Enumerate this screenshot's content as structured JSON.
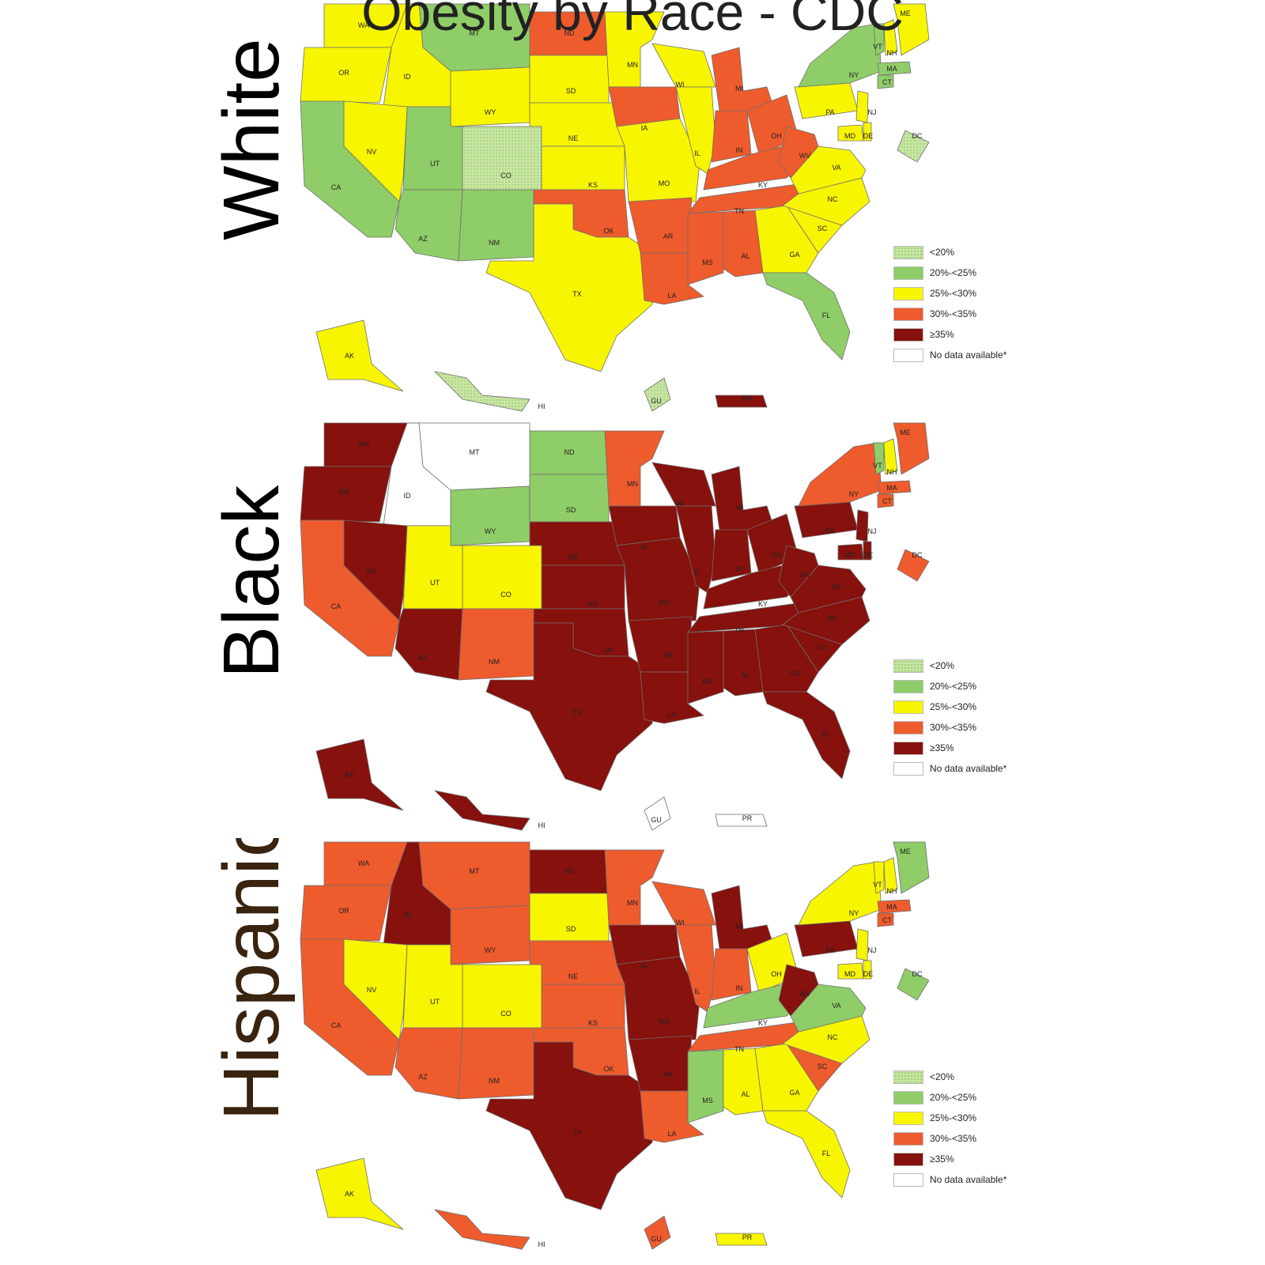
{
  "title": "Obesity by Race - CDC",
  "colors": {
    "lt20": "#c8e6a3",
    "20_25": "#8fcd68",
    "25_30": "#f8f500",
    "30_35": "#ee5b2d",
    "ge35": "#86110d",
    "nodata": "#ffffff"
  },
  "legend": [
    {
      "key": "lt20",
      "label": "<20%"
    },
    {
      "key": "20_25",
      "label": "20%-<25%"
    },
    {
      "key": "25_30",
      "label": "25%-<30%"
    },
    {
      "key": "30_35",
      "label": "30%-<35%"
    },
    {
      "key": "ge35",
      "label": "≥35%"
    },
    {
      "key": "nodata",
      "label": "No data available*"
    }
  ],
  "panels": [
    {
      "label": "White",
      "label_color": "#000000",
      "states": {
        "WA": "25_30",
        "OR": "25_30",
        "CA": "20_25",
        "ID": "25_30",
        "NV": "25_30",
        "MT": "20_25",
        "WY": "25_30",
        "UT": "20_25",
        "CO": "lt20",
        "AZ": "20_25",
        "NM": "20_25",
        "ND": "30_35",
        "SD": "25_30",
        "NE": "25_30",
        "KS": "25_30",
        "OK": "30_35",
        "TX": "25_30",
        "MN": "25_30",
        "IA": "30_35",
        "MO": "25_30",
        "AR": "30_35",
        "LA": "30_35",
        "WI": "25_30",
        "IL": "25_30",
        "MI": "30_35",
        "IN": "30_35",
        "OH": "30_35",
        "KY": "30_35",
        "TN": "30_35",
        "MS": "30_35",
        "AL": "30_35",
        "GA": "25_30",
        "FL": "20_25",
        "SC": "25_30",
        "NC": "25_30",
        "VA": "25_30",
        "WV": "30_35",
        "PA": "25_30",
        "NY": "20_25",
        "VT": "20_25",
        "NH": "25_30",
        "ME": "25_30",
        "MA": "20_25",
        "CT": "20_25",
        "NJ": "25_30",
        "MD": "25_30",
        "DE": "25_30",
        "DC": "lt20",
        "AK": "25_30",
        "HI": "lt20",
        "GU": "lt20",
        "PR": "ge35"
      }
    },
    {
      "label": "Black",
      "label_color": "#000000",
      "states": {
        "WA": "ge35",
        "OR": "ge35",
        "CA": "30_35",
        "ID": "nodata",
        "NV": "ge35",
        "MT": "nodata",
        "WY": "20_25",
        "UT": "25_30",
        "CO": "25_30",
        "AZ": "ge35",
        "NM": "30_35",
        "ND": "20_25",
        "SD": "20_25",
        "NE": "ge35",
        "KS": "ge35",
        "OK": "ge35",
        "TX": "ge35",
        "MN": "30_35",
        "IA": "ge35",
        "MO": "ge35",
        "AR": "ge35",
        "LA": "ge35",
        "WI": "ge35",
        "IL": "ge35",
        "MI": "ge35",
        "IN": "ge35",
        "OH": "ge35",
        "KY": "ge35",
        "TN": "ge35",
        "MS": "ge35",
        "AL": "ge35",
        "GA": "ge35",
        "FL": "ge35",
        "SC": "ge35",
        "NC": "ge35",
        "VA": "ge35",
        "WV": "ge35",
        "PA": "ge35",
        "NY": "30_35",
        "VT": "20_25",
        "NH": "25_30",
        "ME": "30_35",
        "MA": "30_35",
        "CT": "30_35",
        "NJ": "ge35",
        "MD": "ge35",
        "DE": "ge35",
        "DC": "30_35",
        "AK": "ge35",
        "HI": "ge35",
        "GU": "nodata",
        "PR": "nodata"
      }
    },
    {
      "label": "Hispanic",
      "label_color": "#3a2410",
      "states": {
        "WA": "30_35",
        "OR": "30_35",
        "CA": "30_35",
        "ID": "ge35",
        "NV": "25_30",
        "MT": "30_35",
        "WY": "30_35",
        "UT": "25_30",
        "CO": "25_30",
        "AZ": "30_35",
        "NM": "30_35",
        "ND": "ge35",
        "SD": "25_30",
        "NE": "30_35",
        "KS": "30_35",
        "OK": "30_35",
        "TX": "ge35",
        "MN": "30_35",
        "IA": "ge35",
        "MO": "ge35",
        "AR": "ge35",
        "LA": "30_35",
        "WI": "30_35",
        "IL": "30_35",
        "MI": "ge35",
        "IN": "30_35",
        "OH": "25_30",
        "KY": "20_25",
        "TN": "30_35",
        "MS": "20_25",
        "AL": "25_30",
        "GA": "25_30",
        "FL": "25_30",
        "SC": "30_35",
        "NC": "25_30",
        "VA": "20_25",
        "WV": "ge35",
        "PA": "ge35",
        "NY": "25_30",
        "VT": "25_30",
        "NH": "25_30",
        "ME": "20_25",
        "MA": "30_35",
        "CT": "30_35",
        "NJ": "25_30",
        "MD": "25_30",
        "DE": "25_30",
        "DC": "20_25",
        "AK": "25_30",
        "HI": "30_35",
        "GU": "30_35",
        "PR": "25_30"
      }
    }
  ]
}
